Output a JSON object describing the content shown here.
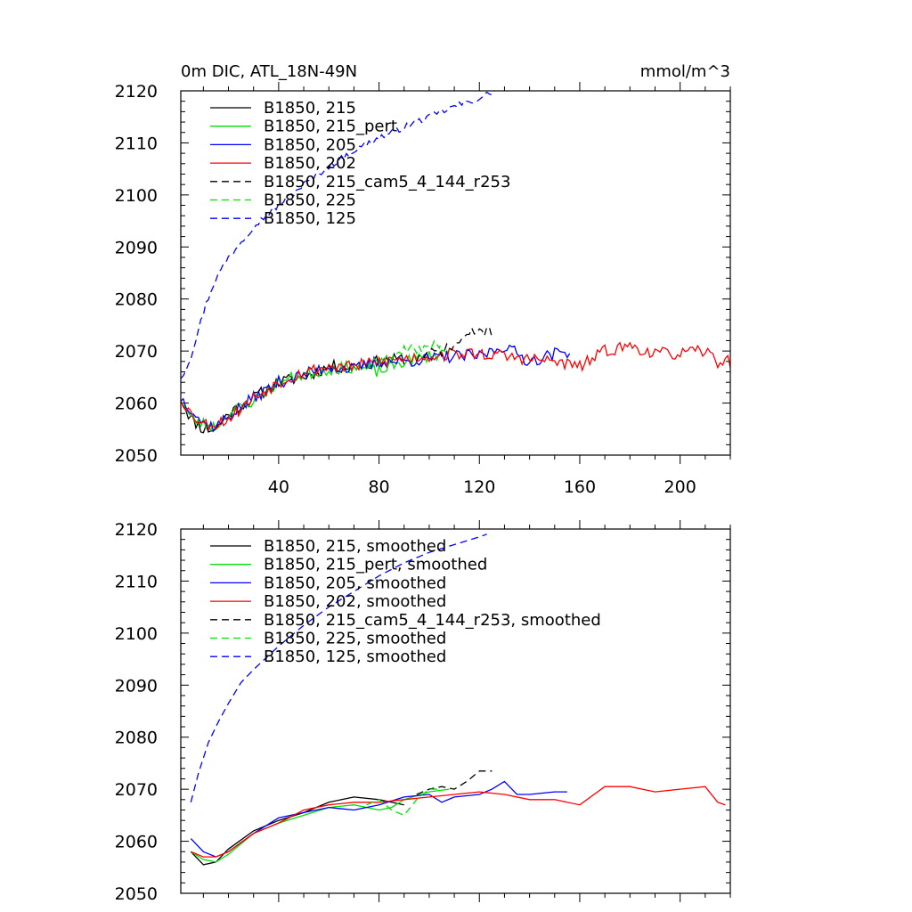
{
  "chart_data": [
    {
      "type": "line",
      "title": "0m DIC, ATL_18N-49N",
      "units": "mmol/m^3",
      "xlim": [
        1,
        220
      ],
      "ylim": [
        2050,
        2120
      ],
      "xticks": [
        40,
        80,
        120,
        160,
        200
      ],
      "yticks": [
        2050,
        2060,
        2070,
        2080,
        2090,
        2100,
        2110,
        2120
      ],
      "grid": false,
      "legend_position": "top-left",
      "series": [
        {
          "name": "B1850, 215",
          "color": "#000000",
          "dash": "solid",
          "noise": 1.2,
          "seed": 11,
          "points": [
            [
              1,
              2061
            ],
            [
              5,
              2057
            ],
            [
              10,
              2055
            ],
            [
              15,
              2055
            ],
            [
              20,
              2058
            ],
            [
              30,
              2061
            ],
            [
              40,
              2064
            ],
            [
              50,
              2065
            ],
            [
              60,
              2067
            ],
            [
              70,
              2067
            ],
            [
              80,
              2068
            ],
            [
              90,
              2068.5
            ]
          ]
        },
        {
          "name": "B1850, 215_pert",
          "color": "#00e000",
          "dash": "solid",
          "noise": 1.2,
          "seed": 23,
          "points": [
            [
              1,
              2061
            ],
            [
              5,
              2057
            ],
            [
              10,
              2056
            ],
            [
              15,
              2055.5
            ],
            [
              20,
              2058
            ],
            [
              30,
              2060.5
            ],
            [
              40,
              2064
            ],
            [
              50,
              2065.5
            ],
            [
              60,
              2066.5
            ],
            [
              70,
              2067
            ],
            [
              80,
              2066
            ],
            [
              90,
              2068
            ],
            [
              100,
              2069
            ],
            [
              108,
              2070
            ]
          ]
        },
        {
          "name": "B1850, 205",
          "color": "#0000ff",
          "dash": "solid",
          "noise": 1.2,
          "seed": 37,
          "points": [
            [
              1,
              2061
            ],
            [
              5,
              2059
            ],
            [
              10,
              2056
            ],
            [
              15,
              2055.5
            ],
            [
              20,
              2057.5
            ],
            [
              30,
              2061
            ],
            [
              40,
              2064
            ],
            [
              50,
              2065.5
            ],
            [
              60,
              2067
            ],
            [
              70,
              2066.5
            ],
            [
              80,
              2068
            ],
            [
              90,
              2068
            ],
            [
              100,
              2068.5
            ],
            [
              110,
              2069
            ],
            [
              120,
              2069
            ],
            [
              130,
              2071
            ],
            [
              140,
              2068
            ],
            [
              150,
              2069.5
            ],
            [
              156,
              2070
            ]
          ]
        },
        {
          "name": "B1850, 202",
          "color": "#ff0000",
          "dash": "solid",
          "noise": 1.2,
          "seed": 53,
          "points": [
            [
              1,
              2061
            ],
            [
              5,
              2058
            ],
            [
              10,
              2056
            ],
            [
              15,
              2056
            ],
            [
              20,
              2057
            ],
            [
              30,
              2061
            ],
            [
              40,
              2064
            ],
            [
              50,
              2066
            ],
            [
              60,
              2067
            ],
            [
              70,
              2067
            ],
            [
              80,
              2068
            ],
            [
              90,
              2068.5
            ],
            [
              100,
              2069
            ],
            [
              110,
              2069.5
            ],
            [
              120,
              2069.5
            ],
            [
              130,
              2069
            ],
            [
              140,
              2068.5
            ],
            [
              150,
              2068
            ],
            [
              160,
              2067
            ],
            [
              170,
              2070
            ],
            [
              180,
              2071
            ],
            [
              190,
              2069.5
            ],
            [
              200,
              2069.5
            ],
            [
              210,
              2070
            ],
            [
              215,
              2068
            ],
            [
              220,
              2068
            ]
          ]
        },
        {
          "name": "B1850, 215_cam5_4_144_r253",
          "color": "#000000",
          "dash": "8,5",
          "noise": 1.0,
          "seed": 71,
          "points": [
            [
              95,
              2068.5
            ],
            [
              100,
              2069.5
            ],
            [
              105,
              2070
            ],
            [
              110,
              2071
            ],
            [
              115,
              2073
            ],
            [
              120,
              2074
            ],
            [
              125,
              2073.5
            ]
          ]
        },
        {
          "name": "B1850, 225",
          "color": "#00e000",
          "dash": "8,5",
          "noise": 1.0,
          "seed": 89,
          "points": [
            [
              75,
              2067
            ],
            [
              80,
              2068
            ],
            [
              85,
              2069
            ],
            [
              90,
              2070
            ],
            [
              95,
              2070.5
            ],
            [
              100,
              2071
            ],
            [
              105,
              2071.5
            ]
          ]
        },
        {
          "name": "B1850, 125",
          "color": "#0000ff",
          "dash": "8,5",
          "noise": 0.6,
          "seed": 97,
          "points": [
            [
              1,
              2065
            ],
            [
              3,
              2066.5
            ],
            [
              5,
              2069
            ],
            [
              8,
              2074
            ],
            [
              11,
              2079
            ],
            [
              15,
              2084
            ],
            [
              20,
              2088
            ],
            [
              25,
              2091
            ],
            [
              30,
              2094
            ],
            [
              40,
              2098
            ],
            [
              50,
              2102
            ],
            [
              60,
              2105.5
            ],
            [
              70,
              2108.5
            ],
            [
              80,
              2111
            ],
            [
              90,
              2113
            ],
            [
              100,
              2115
            ],
            [
              110,
              2117
            ],
            [
              120,
              2118.5
            ],
            [
              126,
              2120
            ]
          ]
        }
      ]
    },
    {
      "type": "line",
      "title": "",
      "units": "",
      "xlim": [
        1,
        220
      ],
      "ylim": [
        2050,
        2120
      ],
      "xticks": [
        40,
        80,
        120,
        160,
        200
      ],
      "yticks": [
        2050,
        2060,
        2070,
        2080,
        2090,
        2100,
        2110,
        2120
      ],
      "show_xtick_labels": false,
      "grid": false,
      "legend_position": "top-left",
      "series": [
        {
          "name": "B1850, 215, smoothed",
          "color": "#000000",
          "dash": "solid",
          "points": [
            [
              5,
              2058
            ],
            [
              10,
              2055.5
            ],
            [
              15,
              2056
            ],
            [
              20,
              2058.5
            ],
            [
              30,
              2062
            ],
            [
              40,
              2064
            ],
            [
              50,
              2065.5
            ],
            [
              60,
              2067.5
            ],
            [
              70,
              2068.5
            ],
            [
              80,
              2068
            ],
            [
              90,
              2067
            ]
          ]
        },
        {
          "name": "B1850, 215_pert, smoothed",
          "color": "#00e000",
          "dash": "solid",
          "points": [
            [
              5,
              2058
            ],
            [
              10,
              2056.5
            ],
            [
              15,
              2056
            ],
            [
              20,
              2057.5
            ],
            [
              30,
              2061.5
            ],
            [
              40,
              2063.5
            ],
            [
              50,
              2065
            ],
            [
              60,
              2066.5
            ],
            [
              70,
              2067
            ],
            [
              80,
              2066
            ],
            [
              85,
              2066.5
            ],
            [
              90,
              2068
            ],
            [
              100,
              2069.5
            ],
            [
              108,
              2070
            ]
          ]
        },
        {
          "name": "B1850, 205, smoothed",
          "color": "#0000ff",
          "dash": "solid",
          "points": [
            [
              5,
              2060.5
            ],
            [
              10,
              2058
            ],
            [
              15,
              2057
            ],
            [
              20,
              2058
            ],
            [
              30,
              2061.5
            ],
            [
              40,
              2064.5
            ],
            [
              50,
              2065.5
            ],
            [
              60,
              2066.5
            ],
            [
              70,
              2066
            ],
            [
              80,
              2067
            ],
            [
              90,
              2068.5
            ],
            [
              100,
              2069
            ],
            [
              105,
              2067.5
            ],
            [
              110,
              2068.5
            ],
            [
              120,
              2069
            ],
            [
              125,
              2070
            ],
            [
              130,
              2071.5
            ],
            [
              135,
              2069
            ],
            [
              140,
              2069
            ],
            [
              150,
              2069.5
            ],
            [
              155,
              2069.5
            ]
          ]
        },
        {
          "name": "B1850, 202, smoothed",
          "color": "#ff0000",
          "dash": "solid",
          "points": [
            [
              5,
              2058
            ],
            [
              10,
              2057
            ],
            [
              15,
              2057
            ],
            [
              20,
              2058
            ],
            [
              30,
              2061.5
            ],
            [
              40,
              2063.5
            ],
            [
              50,
              2066
            ],
            [
              60,
              2067
            ],
            [
              70,
              2067.5
            ],
            [
              80,
              2067.5
            ],
            [
              90,
              2068
            ],
            [
              100,
              2068.5
            ],
            [
              110,
              2069
            ],
            [
              120,
              2069.5
            ],
            [
              130,
              2069
            ],
            [
              140,
              2068
            ],
            [
              150,
              2068
            ],
            [
              160,
              2067
            ],
            [
              170,
              2070.5
            ],
            [
              180,
              2070.5
            ],
            [
              190,
              2069.5
            ],
            [
              200,
              2070
            ],
            [
              210,
              2070.5
            ],
            [
              215,
              2067.5
            ],
            [
              218,
              2067
            ]
          ]
        },
        {
          "name": "B1850, 215_cam5_4_144_r253, smoothed",
          "color": "#000000",
          "dash": "8,5",
          "points": [
            [
              95,
              2069
            ],
            [
              100,
              2070
            ],
            [
              105,
              2070.5
            ],
            [
              110,
              2070
            ],
            [
              115,
              2071.5
            ],
            [
              120,
              2073.5
            ],
            [
              125,
              2073.5
            ]
          ]
        },
        {
          "name": "B1850, 225, smoothed",
          "color": "#00e000",
          "dash": "8,5",
          "points": [
            [
              75,
              2067
            ],
            [
              80,
              2068
            ],
            [
              85,
              2066
            ],
            [
              90,
              2065
            ],
            [
              95,
              2068
            ],
            [
              100,
              2070
            ],
            [
              105,
              2070
            ]
          ]
        },
        {
          "name": "B1850, 125, smoothed",
          "color": "#0000ff",
          "dash": "8,5",
          "points": [
            [
              5,
              2067.5
            ],
            [
              8,
              2073
            ],
            [
              12,
              2079
            ],
            [
              16,
              2083
            ],
            [
              20,
              2086.5
            ],
            [
              25,
              2090.5
            ],
            [
              30,
              2093
            ],
            [
              40,
              2097.5
            ],
            [
              50,
              2101.5
            ],
            [
              60,
              2105
            ],
            [
              70,
              2108
            ],
            [
              80,
              2111
            ],
            [
              90,
              2113.5
            ],
            [
              100,
              2115.5
            ],
            [
              110,
              2117
            ],
            [
              120,
              2118.5
            ],
            [
              123,
              2119
            ]
          ]
        }
      ]
    }
  ]
}
